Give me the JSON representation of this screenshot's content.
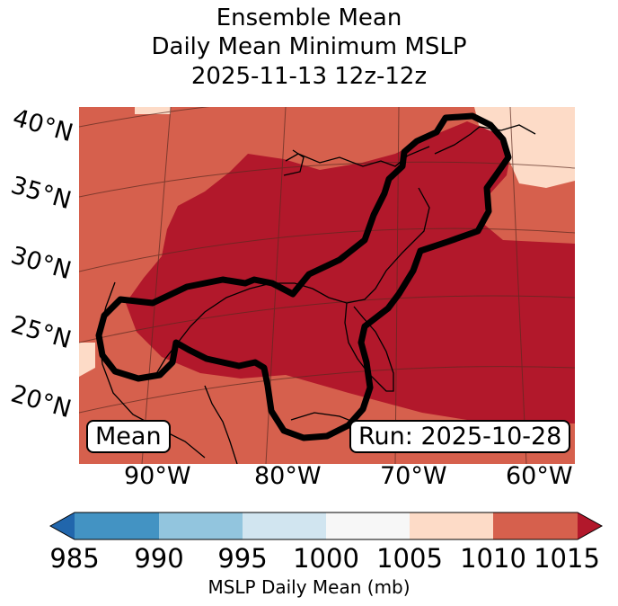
{
  "title": {
    "line1": "Ensemble Mean",
    "line2": "Daily Mean Minimum MSLP",
    "line3": "2025-11-13 12z-12z"
  },
  "latitude_labels": [
    "40°N",
    "35°N",
    "30°N",
    "25°N",
    "20°N"
  ],
  "longitude_labels": [
    "90°W",
    "80°W",
    "70°W",
    "60°W"
  ],
  "panel_labels": {
    "left": "Mean",
    "right": "Run: 2025-10-28"
  },
  "colorbar": {
    "label": "MSLP Daily Mean (mb)",
    "ticks": [
      "985",
      "990",
      "995",
      "1000",
      "1005",
      "1010",
      "1015"
    ],
    "colors": [
      "#4393c3",
      "#92c5de",
      "#d1e5f0",
      "#f7f7f7",
      "#fddbc7",
      "#d6604d"
    ],
    "under_color": "#2166ac",
    "over_color": "#b2182b"
  },
  "map_colors": {
    "band_1005_1010": "#fddbc7",
    "band_1010_1015": "#d6604d",
    "above_1015": "#b2182b"
  }
}
